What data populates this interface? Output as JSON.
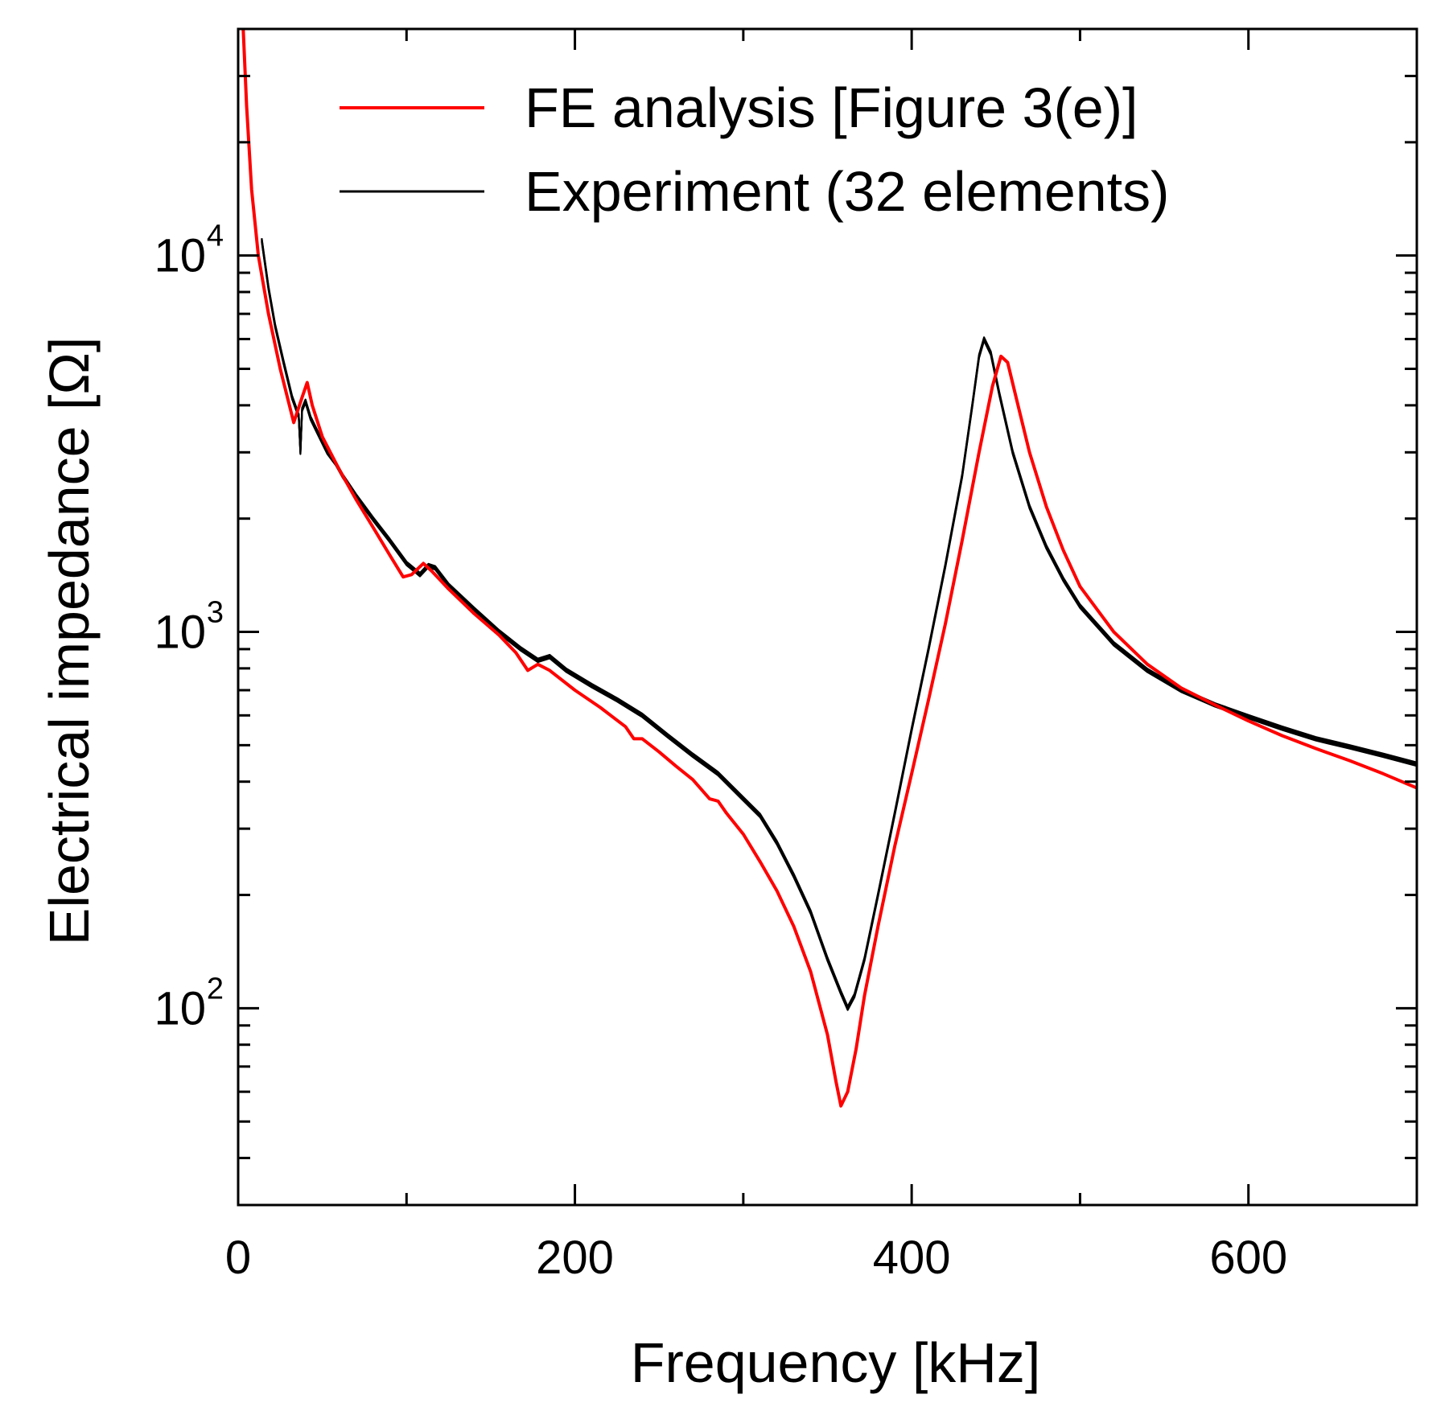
{
  "chart_data": {
    "type": "line",
    "title": "",
    "xlabel": "Frequency [kHz]",
    "ylabel": "Electrical impedance [Ω]",
    "xlim": [
      0,
      700
    ],
    "ylim": [
      30,
      40000
    ],
    "yscale": "log",
    "xticks": [
      0,
      200,
      400,
      600
    ],
    "xtick_labels": [
      "0",
      "200",
      "400",
      "600"
    ],
    "yticks": [
      {
        "value": 100,
        "base": "10",
        "exp": "2"
      },
      {
        "value": 1000,
        "base": "10",
        "exp": "3"
      },
      {
        "value": 10000,
        "base": "10",
        "exp": "4"
      }
    ],
    "legend": {
      "position": "top-right",
      "entries": [
        {
          "label": "FE analysis [Figure 3(e)]",
          "color": "#ff0000"
        },
        {
          "label": "Experiment (32 elements)",
          "color": "#000000"
        }
      ]
    },
    "series": [
      {
        "name": "FE analysis [Figure 3(e)]",
        "color": "#ff0000",
        "points": [
          [
            3,
            40000
          ],
          [
            5,
            25000
          ],
          [
            8,
            15000
          ],
          [
            12,
            10000
          ],
          [
            18,
            7000
          ],
          [
            25,
            5000
          ],
          [
            33,
            3600
          ],
          [
            38,
            4200
          ],
          [
            41,
            4600
          ],
          [
            44,
            4000
          ],
          [
            50,
            3300
          ],
          [
            60,
            2700
          ],
          [
            70,
            2250
          ],
          [
            80,
            1900
          ],
          [
            90,
            1600
          ],
          [
            98,
            1400
          ],
          [
            103,
            1420
          ],
          [
            110,
            1520
          ],
          [
            115,
            1450
          ],
          [
            125,
            1300
          ],
          [
            140,
            1120
          ],
          [
            155,
            980
          ],
          [
            165,
            880
          ],
          [
            172,
            790
          ],
          [
            178,
            820
          ],
          [
            185,
            790
          ],
          [
            200,
            700
          ],
          [
            215,
            630
          ],
          [
            230,
            560
          ],
          [
            235,
            520
          ],
          [
            240,
            520
          ],
          [
            250,
            480
          ],
          [
            260,
            440
          ],
          [
            270,
            405
          ],
          [
            280,
            360
          ],
          [
            285,
            355
          ],
          [
            290,
            330
          ],
          [
            300,
            290
          ],
          [
            310,
            245
          ],
          [
            320,
            205
          ],
          [
            330,
            165
          ],
          [
            340,
            125
          ],
          [
            350,
            85
          ],
          [
            355,
            64
          ],
          [
            358,
            55
          ],
          [
            362,
            60
          ],
          [
            367,
            78
          ],
          [
            372,
            108
          ],
          [
            380,
            165
          ],
          [
            390,
            270
          ],
          [
            400,
            420
          ],
          [
            410,
            660
          ],
          [
            420,
            1050
          ],
          [
            430,
            1750
          ],
          [
            440,
            3000
          ],
          [
            448,
            4500
          ],
          [
            453,
            5400
          ],
          [
            457,
            5200
          ],
          [
            462,
            4200
          ],
          [
            470,
            3000
          ],
          [
            480,
            2150
          ],
          [
            490,
            1650
          ],
          [
            500,
            1320
          ],
          [
            520,
            1000
          ],
          [
            540,
            820
          ],
          [
            560,
            710
          ],
          [
            580,
            640
          ],
          [
            600,
            580
          ],
          [
            620,
            530
          ],
          [
            640,
            490
          ],
          [
            660,
            455
          ],
          [
            680,
            420
          ],
          [
            700,
            385
          ]
        ]
      },
      {
        "name": "Experiment (32 elements)",
        "color": "#000000",
        "points": [
          [
            14,
            11000
          ],
          [
            18,
            8200
          ],
          [
            22,
            6500
          ],
          [
            27,
            5200
          ],
          [
            32,
            4200
          ],
          [
            36,
            3750
          ],
          [
            37,
            3000
          ],
          [
            38,
            3900
          ],
          [
            40,
            4100
          ],
          [
            43,
            3700
          ],
          [
            47,
            3400
          ],
          [
            53,
            3000
          ],
          [
            58,
            2800
          ],
          [
            62,
            2600
          ],
          [
            70,
            2300
          ],
          [
            80,
            2000
          ],
          [
            90,
            1750
          ],
          [
            100,
            1520
          ],
          [
            108,
            1420
          ],
          [
            113,
            1500
          ],
          [
            117,
            1480
          ],
          [
            125,
            1330
          ],
          [
            140,
            1150
          ],
          [
            155,
            1000
          ],
          [
            168,
            900
          ],
          [
            178,
            840
          ],
          [
            185,
            860
          ],
          [
            195,
            790
          ],
          [
            210,
            720
          ],
          [
            225,
            660
          ],
          [
            240,
            600
          ],
          [
            255,
            530
          ],
          [
            270,
            470
          ],
          [
            285,
            420
          ],
          [
            300,
            360
          ],
          [
            310,
            325
          ],
          [
            320,
            275
          ],
          [
            330,
            225
          ],
          [
            340,
            180
          ],
          [
            350,
            135
          ],
          [
            358,
            110
          ],
          [
            362,
            100
          ],
          [
            366,
            108
          ],
          [
            372,
            135
          ],
          [
            380,
            200
          ],
          [
            390,
            330
          ],
          [
            400,
            550
          ],
          [
            410,
            900
          ],
          [
            420,
            1500
          ],
          [
            430,
            2600
          ],
          [
            436,
            4000
          ],
          [
            440,
            5400
          ],
          [
            443,
            6000
          ],
          [
            447,
            5500
          ],
          [
            452,
            4300
          ],
          [
            460,
            3000
          ],
          [
            470,
            2150
          ],
          [
            480,
            1680
          ],
          [
            490,
            1380
          ],
          [
            500,
            1170
          ],
          [
            520,
            930
          ],
          [
            540,
            790
          ],
          [
            560,
            700
          ],
          [
            580,
            640
          ],
          [
            600,
            595
          ],
          [
            620,
            555
          ],
          [
            640,
            520
          ],
          [
            660,
            495
          ],
          [
            680,
            470
          ],
          [
            700,
            445
          ]
        ]
      }
    ]
  }
}
